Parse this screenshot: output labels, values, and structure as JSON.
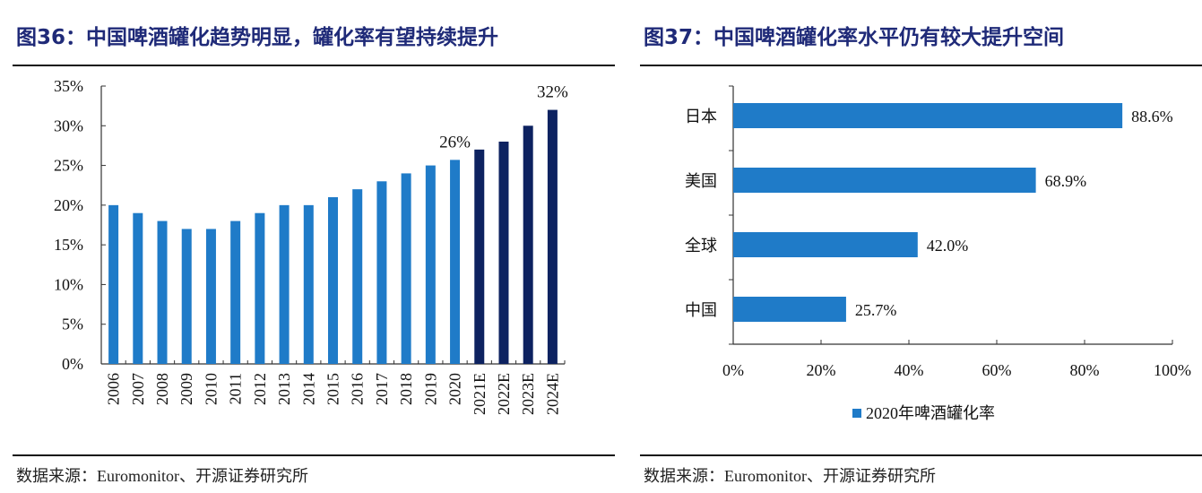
{
  "chart_data": [
    {
      "type": "bar",
      "title": "图36：中国啤酒罐化趋势明显，罐化率有望持续提升",
      "categories": [
        "2006",
        "2007",
        "2008",
        "2009",
        "2010",
        "2011",
        "2012",
        "2013",
        "2014",
        "2015",
        "2016",
        "2017",
        "2018",
        "2019",
        "2020",
        "2021E",
        "2022E",
        "2023E",
        "2024E"
      ],
      "values": [
        20,
        19,
        18,
        17,
        17,
        18,
        19,
        20,
        20,
        21,
        22,
        23,
        24,
        25,
        25.7,
        27,
        28,
        30,
        32
      ],
      "estimate_from_index": 15,
      "data_labels": [
        {
          "category": "2020",
          "text": "26%"
        },
        {
          "category": "2024E",
          "text": "32%"
        }
      ],
      "yticks": [
        "0%",
        "5%",
        "10%",
        "15%",
        "20%",
        "25%",
        "30%",
        "35%"
      ],
      "ylim": [
        0,
        35
      ],
      "grid": false,
      "colors": {
        "actual": "#1f7bc8",
        "estimate": "#0d2260"
      },
      "source": "数据来源：Euromonitor、开源证券研究所"
    },
    {
      "type": "bar",
      "orientation": "horizontal",
      "title": "图37：中国啤酒罐化率水平仍有较大提升空间",
      "categories": [
        "日本",
        "美国",
        "全球",
        "中国"
      ],
      "series": [
        {
          "name": "2020年啤酒罐化率",
          "values": [
            88.6,
            68.9,
            42.0,
            25.7
          ]
        }
      ],
      "data_labels": [
        "88.6%",
        "68.9%",
        "42.0%",
        "25.7%"
      ],
      "xticks": [
        "0%",
        "20%",
        "40%",
        "60%",
        "80%",
        "100%"
      ],
      "xlim": [
        0,
        100
      ],
      "grid": false,
      "legend": "bottom",
      "colors": {
        "bar": "#1f7bc8"
      },
      "source": "数据来源：Euromonitor、开源证券研究所"
    }
  ]
}
